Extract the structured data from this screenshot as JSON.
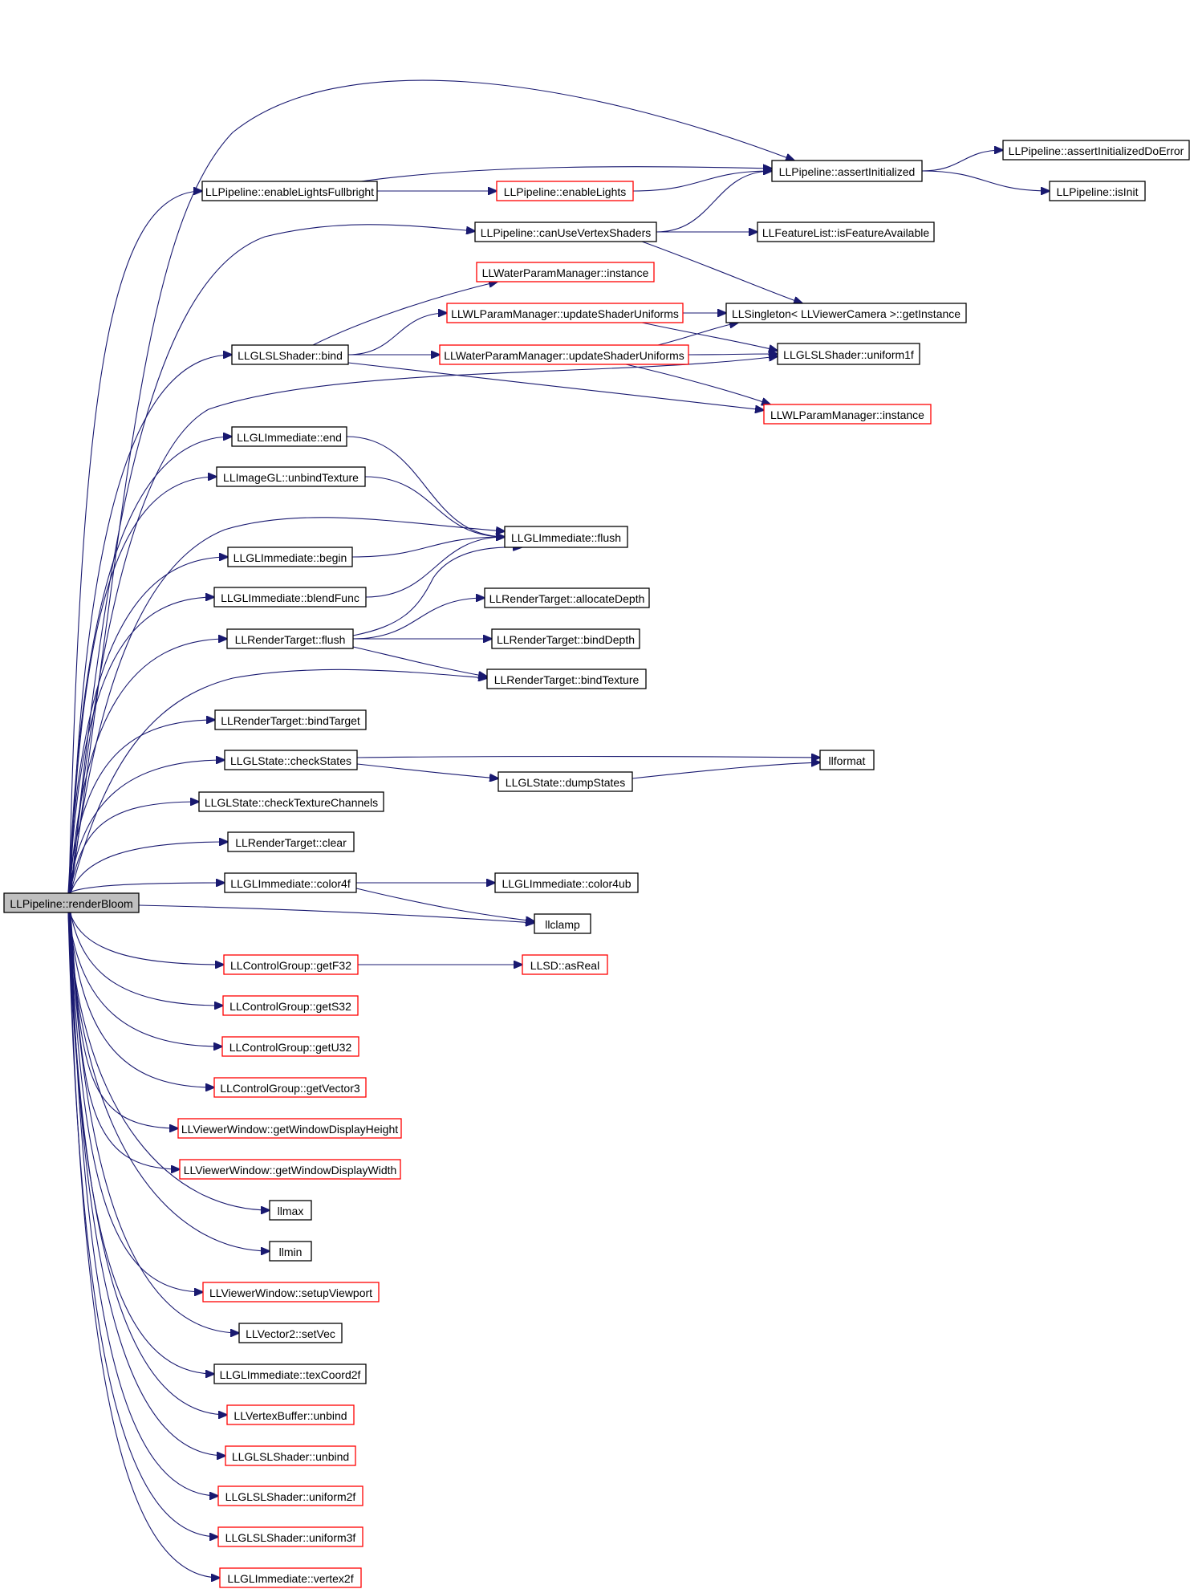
{
  "graph": {
    "colors": {
      "edge": "#191970",
      "normal_border": "#000000",
      "truncated_border": "#ff0000",
      "root_fill": "#bfbfbf"
    },
    "nodes": [
      {
        "id": "renderBloom",
        "label": "LLPipeline::renderBloom",
        "kind": "root"
      },
      {
        "id": "assertInitialized",
        "label": "LLPipeline::assertInitialized",
        "kind": "normal"
      },
      {
        "id": "assertInitializedDoError",
        "label": "LLPipeline::assertInitializedDoError",
        "kind": "normal"
      },
      {
        "id": "isInit",
        "label": "LLPipeline::isInit",
        "kind": "normal"
      },
      {
        "id": "enableLightsFullbright",
        "label": "LLPipeline::enableLightsFullbright",
        "kind": "normal"
      },
      {
        "id": "enableLights",
        "label": "LLPipeline::enableLights",
        "kind": "truncated"
      },
      {
        "id": "canUseVertexShaders",
        "label": "LLPipeline::canUseVertexShaders",
        "kind": "normal"
      },
      {
        "id": "isFeatureAvailable",
        "label": "LLFeatureList::isFeatureAvailable",
        "kind": "normal"
      },
      {
        "id": "waterInstance",
        "label": "LLWaterParamManager::instance",
        "kind": "truncated"
      },
      {
        "id": "wlUpdateShaderUniforms",
        "label": "LLWLParamManager::updateShaderUniforms",
        "kind": "truncated"
      },
      {
        "id": "singletonGetInstance",
        "label": "LLSingleton< LLViewerCamera >::getInstance",
        "kind": "normal"
      },
      {
        "id": "shaderBind",
        "label": "LLGLSLShader::bind",
        "kind": "normal"
      },
      {
        "id": "waterUpdateShaderUniforms",
        "label": "LLWaterParamManager::updateShaderUniforms",
        "kind": "truncated"
      },
      {
        "id": "uniform1f",
        "label": "LLGLSLShader::uniform1f",
        "kind": "normal"
      },
      {
        "id": "wlInstance",
        "label": "LLWLParamManager::instance",
        "kind": "truncated"
      },
      {
        "id": "immEnd",
        "label": "LLGLImmediate::end",
        "kind": "normal"
      },
      {
        "id": "unbindTexture",
        "label": "LLImageGL::unbindTexture",
        "kind": "normal"
      },
      {
        "id": "immFlush",
        "label": "LLGLImmediate::flush",
        "kind": "normal"
      },
      {
        "id": "immBegin",
        "label": "LLGLImmediate::begin",
        "kind": "normal"
      },
      {
        "id": "blendFunc",
        "label": "LLGLImmediate::blendFunc",
        "kind": "normal"
      },
      {
        "id": "allocateDepth",
        "label": "LLRenderTarget::allocateDepth",
        "kind": "normal"
      },
      {
        "id": "rtFlush",
        "label": "LLRenderTarget::flush",
        "kind": "normal"
      },
      {
        "id": "bindDepth",
        "label": "LLRenderTarget::bindDepth",
        "kind": "normal"
      },
      {
        "id": "bindTexture",
        "label": "LLRenderTarget::bindTexture",
        "kind": "normal"
      },
      {
        "id": "bindTarget",
        "label": "LLRenderTarget::bindTarget",
        "kind": "normal"
      },
      {
        "id": "checkStates",
        "label": "LLGLState::checkStates",
        "kind": "normal"
      },
      {
        "id": "llformat",
        "label": "llformat",
        "kind": "normal"
      },
      {
        "id": "dumpStates",
        "label": "LLGLState::dumpStates",
        "kind": "normal"
      },
      {
        "id": "checkTextureChannels",
        "label": "LLGLState::checkTextureChannels",
        "kind": "normal"
      },
      {
        "id": "rtClear",
        "label": "LLRenderTarget::clear",
        "kind": "normal"
      },
      {
        "id": "color4f",
        "label": "LLGLImmediate::color4f",
        "kind": "normal"
      },
      {
        "id": "color4ub",
        "label": "LLGLImmediate::color4ub",
        "kind": "normal"
      },
      {
        "id": "llclamp",
        "label": "llclamp",
        "kind": "normal"
      },
      {
        "id": "getF32",
        "label": "LLControlGroup::getF32",
        "kind": "truncated"
      },
      {
        "id": "asReal",
        "label": "LLSD::asReal",
        "kind": "truncated"
      },
      {
        "id": "getS32",
        "label": "LLControlGroup::getS32",
        "kind": "truncated"
      },
      {
        "id": "getU32",
        "label": "LLControlGroup::getU32",
        "kind": "truncated"
      },
      {
        "id": "getVector3",
        "label": "LLControlGroup::getVector3",
        "kind": "truncated"
      },
      {
        "id": "displayHeight",
        "label": "LLViewerWindow::getWindowDisplayHeight",
        "kind": "truncated"
      },
      {
        "id": "displayWidth",
        "label": "LLViewerWindow::getWindowDisplayWidth",
        "kind": "truncated"
      },
      {
        "id": "llmax",
        "label": "llmax",
        "kind": "normal"
      },
      {
        "id": "llmin",
        "label": "llmin",
        "kind": "normal"
      },
      {
        "id": "setupViewport",
        "label": "LLViewerWindow::setupViewport",
        "kind": "truncated"
      },
      {
        "id": "setVec",
        "label": "LLVector2::setVec",
        "kind": "normal"
      },
      {
        "id": "texCoord2f",
        "label": "LLGLImmediate::texCoord2f",
        "kind": "normal"
      },
      {
        "id": "vbUnbind",
        "label": "LLVertexBuffer::unbind",
        "kind": "truncated"
      },
      {
        "id": "shaderUnbind",
        "label": "LLGLSLShader::unbind",
        "kind": "truncated"
      },
      {
        "id": "uniform2f",
        "label": "LLGLSLShader::uniform2f",
        "kind": "truncated"
      },
      {
        "id": "uniform3f",
        "label": "LLGLSLShader::uniform3f",
        "kind": "truncated"
      },
      {
        "id": "vertex2f",
        "label": "LLGLImmediate::vertex2f",
        "kind": "truncated"
      }
    ],
    "edges": [
      [
        "renderBloom",
        "assertInitialized"
      ],
      [
        "renderBloom",
        "enableLightsFullbright"
      ],
      [
        "renderBloom",
        "canUseVertexShaders"
      ],
      [
        "renderBloom",
        "shaderBind"
      ],
      [
        "renderBloom",
        "uniform1f"
      ],
      [
        "renderBloom",
        "immEnd"
      ],
      [
        "renderBloom",
        "unbindTexture"
      ],
      [
        "renderBloom",
        "immFlush"
      ],
      [
        "renderBloom",
        "immBegin"
      ],
      [
        "renderBloom",
        "blendFunc"
      ],
      [
        "renderBloom",
        "rtFlush"
      ],
      [
        "renderBloom",
        "bindTexture"
      ],
      [
        "renderBloom",
        "bindTarget"
      ],
      [
        "renderBloom",
        "checkStates"
      ],
      [
        "renderBloom",
        "checkTextureChannels"
      ],
      [
        "renderBloom",
        "rtClear"
      ],
      [
        "renderBloom",
        "color4f"
      ],
      [
        "renderBloom",
        "llclamp"
      ],
      [
        "renderBloom",
        "getF32"
      ],
      [
        "renderBloom",
        "getS32"
      ],
      [
        "renderBloom",
        "getU32"
      ],
      [
        "renderBloom",
        "getVector3"
      ],
      [
        "renderBloom",
        "displayHeight"
      ],
      [
        "renderBloom",
        "displayWidth"
      ],
      [
        "renderBloom",
        "llmax"
      ],
      [
        "renderBloom",
        "llmin"
      ],
      [
        "renderBloom",
        "setupViewport"
      ],
      [
        "renderBloom",
        "setVec"
      ],
      [
        "renderBloom",
        "texCoord2f"
      ],
      [
        "renderBloom",
        "vbUnbind"
      ],
      [
        "renderBloom",
        "shaderUnbind"
      ],
      [
        "renderBloom",
        "uniform2f"
      ],
      [
        "renderBloom",
        "uniform3f"
      ],
      [
        "renderBloom",
        "vertex2f"
      ],
      [
        "assertInitialized",
        "assertInitializedDoError"
      ],
      [
        "assertInitialized",
        "isInit"
      ],
      [
        "enableLightsFullbright",
        "assertInitialized"
      ],
      [
        "enableLightsFullbright",
        "enableLights"
      ],
      [
        "enableLights",
        "assertInitialized"
      ],
      [
        "canUseVertexShaders",
        "assertInitialized"
      ],
      [
        "canUseVertexShaders",
        "isFeatureAvailable"
      ],
      [
        "canUseVertexShaders",
        "singletonGetInstance"
      ],
      [
        "shaderBind",
        "waterInstance"
      ],
      [
        "shaderBind",
        "wlUpdateShaderUniforms"
      ],
      [
        "shaderBind",
        "waterUpdateShaderUniforms"
      ],
      [
        "shaderBind",
        "wlInstance"
      ],
      [
        "wlUpdateShaderUniforms",
        "singletonGetInstance"
      ],
      [
        "wlUpdateShaderUniforms",
        "uniform1f"
      ],
      [
        "waterUpdateShaderUniforms",
        "singletonGetInstance"
      ],
      [
        "waterUpdateShaderUniforms",
        "uniform1f"
      ],
      [
        "waterUpdateShaderUniforms",
        "wlInstance"
      ],
      [
        "immEnd",
        "immFlush"
      ],
      [
        "unbindTexture",
        "immFlush"
      ],
      [
        "immBegin",
        "immFlush"
      ],
      [
        "blendFunc",
        "immFlush"
      ],
      [
        "rtFlush",
        "immFlush"
      ],
      [
        "rtFlush",
        "allocateDepth"
      ],
      [
        "rtFlush",
        "bindDepth"
      ],
      [
        "rtFlush",
        "bindTexture"
      ],
      [
        "checkStates",
        "llformat"
      ],
      [
        "checkStates",
        "dumpStates"
      ],
      [
        "dumpStates",
        "llformat"
      ],
      [
        "color4f",
        "color4ub"
      ],
      [
        "color4f",
        "llclamp"
      ],
      [
        "getF32",
        "asReal"
      ]
    ]
  }
}
